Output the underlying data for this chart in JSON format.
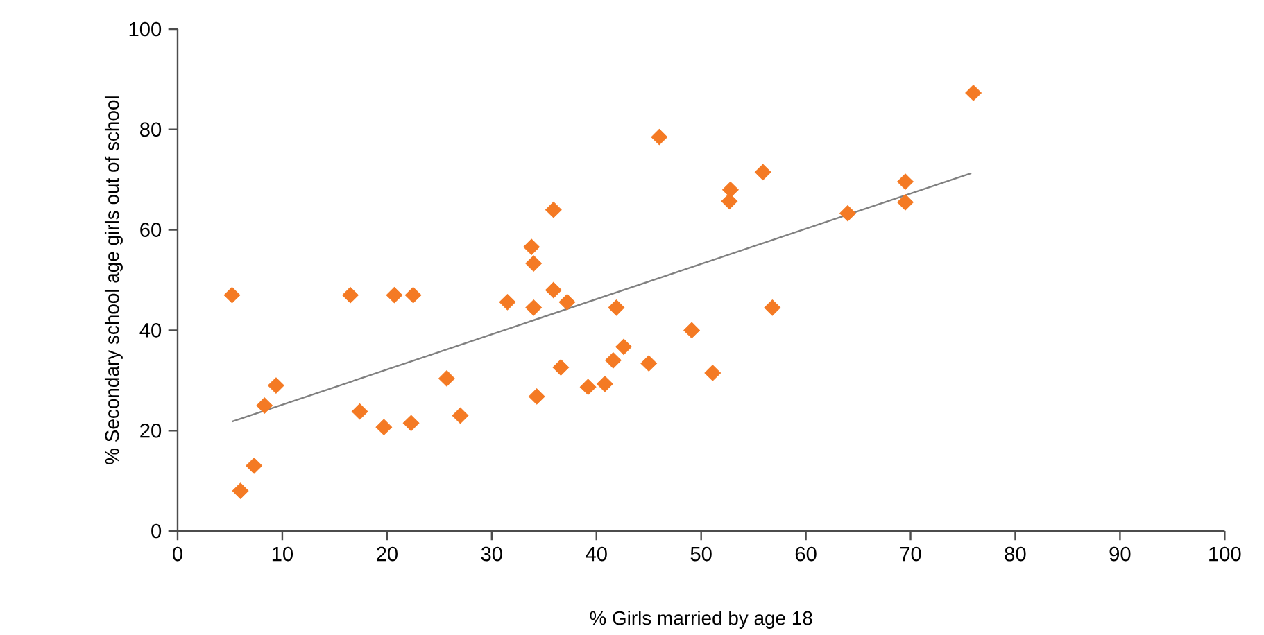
{
  "chart_data": {
    "type": "scatter",
    "xlabel": "% Girls married by age 18",
    "ylabel": "% Secondary school age girls out of school",
    "xlim": [
      0,
      100
    ],
    "ylim": [
      0,
      100
    ],
    "xticks": [
      0,
      10,
      20,
      30,
      40,
      50,
      60,
      70,
      80,
      90,
      100
    ],
    "yticks": [
      0,
      20,
      40,
      60,
      80,
      100
    ],
    "grid": false,
    "series": [
      {
        "marker": "diamond",
        "color": "#f47a24",
        "x": [
          5.2,
          6,
          7.3,
          8.3,
          9.4,
          16.5,
          17.4,
          19.7,
          20.7,
          22.3,
          22.5,
          25.7,
          27,
          31.5,
          33.8,
          34,
          34,
          34.3,
          35.9,
          35.9,
          36.6,
          37.2,
          39.2,
          40.8,
          41.6,
          41.9,
          42.6,
          45,
          46,
          49.1,
          51.1,
          52.7,
          52.8,
          55.9,
          56.8,
          64,
          69.5,
          69.5,
          76
        ],
        "values": [
          47,
          8,
          13,
          25,
          29,
          47,
          23.8,
          20.7,
          47,
          21.5,
          47,
          30.4,
          23,
          45.6,
          56.6,
          53.3,
          44.5,
          26.8,
          64,
          48,
          32.6,
          45.6,
          28.7,
          29.3,
          34,
          44.5,
          36.7,
          33.4,
          78.5,
          40,
          31.5,
          65.7,
          68,
          71.5,
          44.5,
          63.3,
          65.5,
          69.6,
          87.3
        ]
      },
      {
        "type": "line",
        "marker": "none",
        "color": "#808080",
        "x": [
          5.2,
          75.8
        ],
        "values": [
          21.8,
          71.3
        ]
      }
    ]
  }
}
